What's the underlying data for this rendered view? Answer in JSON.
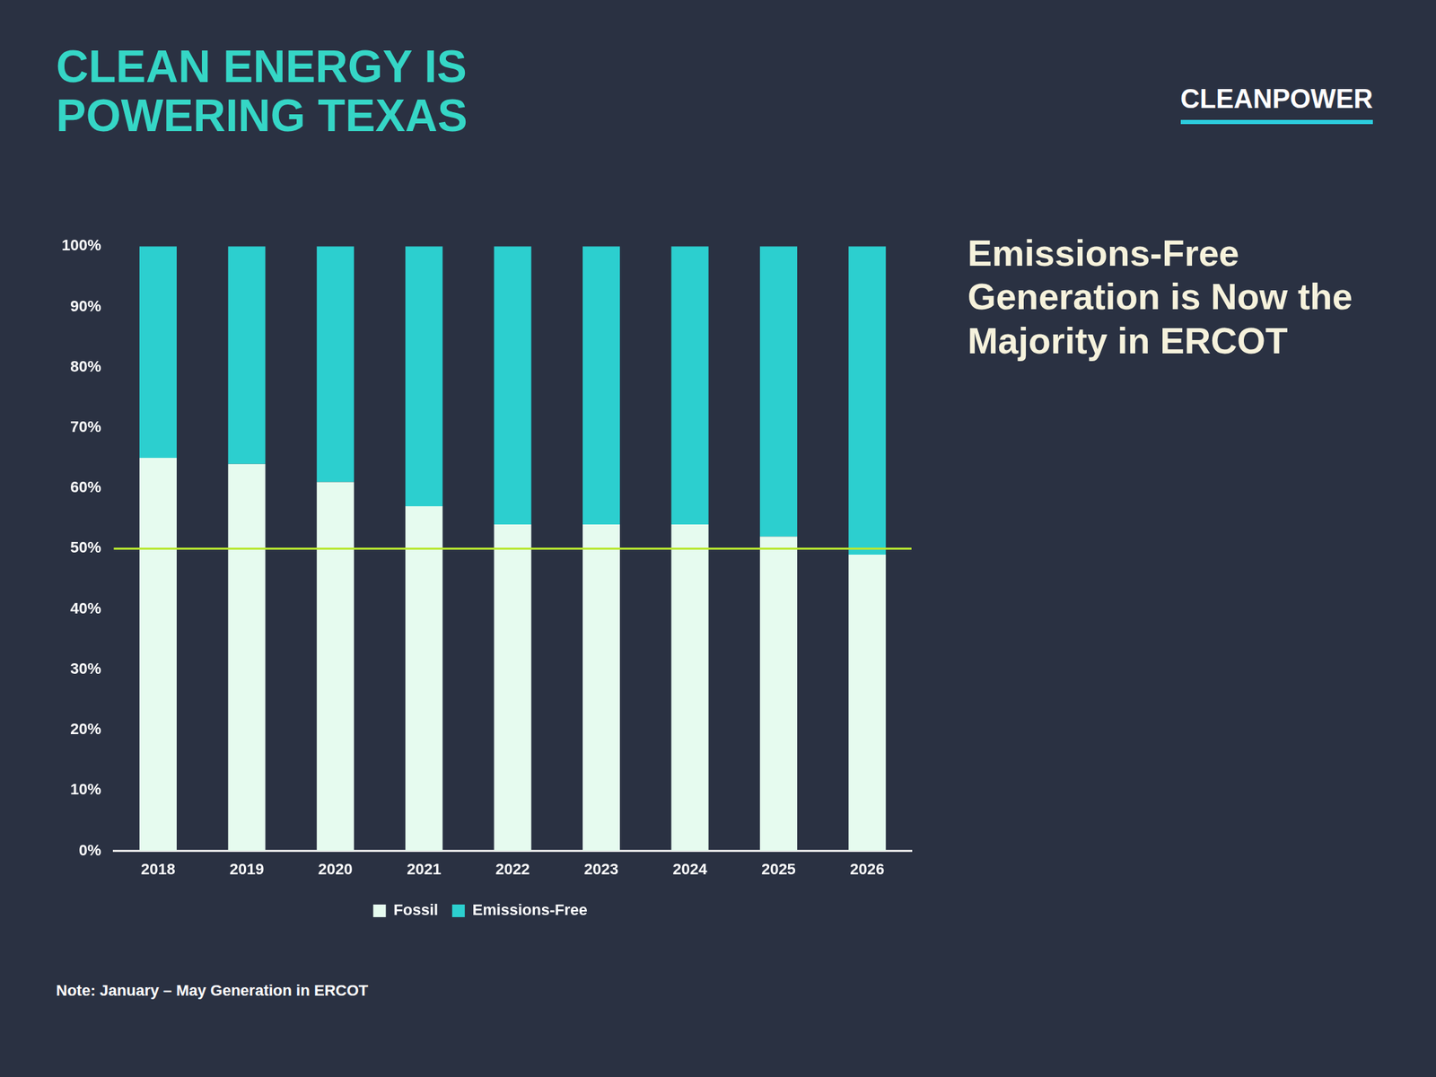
{
  "title": "CLEAN ENERGY IS POWERING TEXAS",
  "logo": "CLEANPOWER",
  "sidebar": "Emissions-Free Generation is Now the Majority in ERCOT",
  "note": "Note: January – May Generation in ERCOT",
  "chart_data": {
    "type": "bar",
    "stacked": true,
    "categories": [
      "2018",
      "2019",
      "2020",
      "2021",
      "2022",
      "2023",
      "2024",
      "2025",
      "2026"
    ],
    "series": [
      {
        "name": "Fossil",
        "color": "#e6fbef",
        "values": [
          65,
          64,
          61,
          57,
          54,
          54,
          54,
          52,
          49
        ]
      },
      {
        "name": "Emissions-Free",
        "color": "#2ccfcf",
        "values": [
          35,
          36,
          39,
          43,
          46,
          46,
          46,
          48,
          51
        ]
      }
    ],
    "ylim": [
      0,
      100
    ],
    "yticks": [
      {
        "value": 0,
        "label": "0%"
      },
      {
        "value": 10,
        "label": "10%"
      },
      {
        "value": 20,
        "label": "20%"
      },
      {
        "value": 30,
        "label": "30%"
      },
      {
        "value": 40,
        "label": "40%"
      },
      {
        "value": 50,
        "label": "50%"
      },
      {
        "value": 60,
        "label": "60%"
      },
      {
        "value": 70,
        "label": "70%"
      },
      {
        "value": 80,
        "label": "80%"
      },
      {
        "value": 90,
        "label": "90%"
      },
      {
        "value": 100,
        "label": "100%"
      }
    ],
    "reference_line": {
      "value": 50,
      "color": "#b8e830"
    },
    "grid": false,
    "legend": "bottom",
    "data_labels": false
  }
}
